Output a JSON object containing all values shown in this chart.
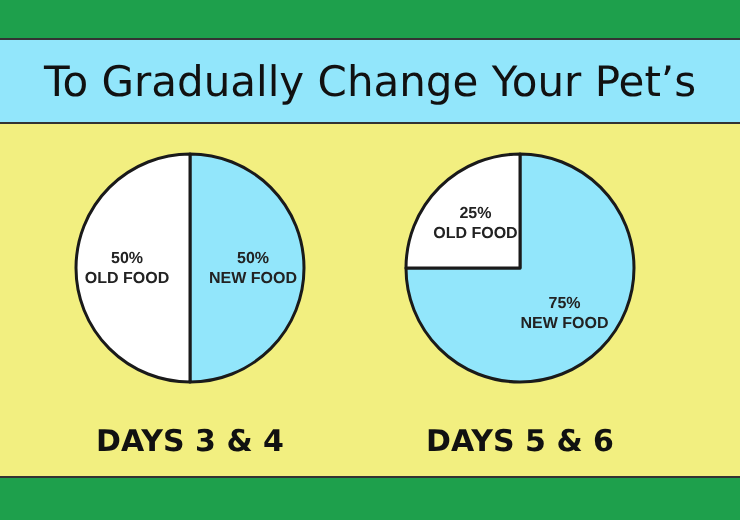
{
  "chart_data": [
    {
      "type": "pie",
      "title": "DAYS 3 & 4",
      "categories": [
        "NEW FOOD",
        "OLD FOOD"
      ],
      "values": [
        50,
        50
      ],
      "value_labels": [
        "50%",
        "50%"
      ],
      "colors": [
        "#92e6fb",
        "#ffffff"
      ],
      "legend": false,
      "annotations": [
        "To Gradually Change Your Pet’s"
      ]
    },
    {
      "type": "pie",
      "title": "DAYS 5 & 6",
      "categories": [
        "NEW FOOD",
        "OLD FOOD"
      ],
      "values": [
        75,
        25
      ],
      "value_labels": [
        "75%",
        "25%"
      ],
      "colors": [
        "#92e6fb",
        "#ffffff"
      ],
      "legend": false
    }
  ]
}
